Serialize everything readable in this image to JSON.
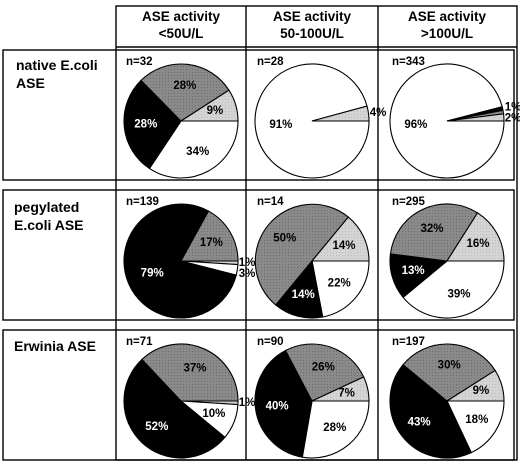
{
  "chart_data": {
    "type": "pie",
    "columns": [
      "ASE activity\n<50U/L",
      "ASE activity\n50-100U/L",
      "ASE activity\n>100U/L"
    ],
    "rows": [
      "native E.coli\nASE",
      "pegylated\nE.coli ASE",
      "Erwinia ASE"
    ],
    "colors": {
      "white": "#ffffff",
      "lightgray": "#d4d4d4",
      "darkgray": "#8a8a8a",
      "black": "#000000"
    },
    "pies": [
      {
        "row": 0,
        "col": 0,
        "n": "n=32",
        "slices": [
          {
            "value": 34,
            "label": "34%",
            "color": "white"
          },
          {
            "value": 28,
            "label": "28%",
            "color": "black"
          },
          {
            "value": 28,
            "label": "28%",
            "color": "darkgray"
          },
          {
            "value": 9,
            "label": "9%",
            "color": "lightgray"
          }
        ]
      },
      {
        "row": 0,
        "col": 1,
        "n": "n=28",
        "slices": [
          {
            "value": 91,
            "label": "91%",
            "color": "white"
          },
          {
            "value": 4,
            "label": "4%",
            "color": "lightgray"
          }
        ]
      },
      {
        "row": 0,
        "col": 2,
        "n": "n=343",
        "slices": [
          {
            "value": 96,
            "label": "96%",
            "color": "white"
          },
          {
            "value": 1,
            "label": "1%",
            "color": "black"
          },
          {
            "value": 1,
            "label": "",
            "color": "darkgray"
          },
          {
            "value": 2,
            "label": "2%",
            "color": "lightgray"
          }
        ]
      },
      {
        "row": 1,
        "col": 0,
        "n": "n=139",
        "slices": [
          {
            "value": 1,
            "label": "1%",
            "color": "lightgray"
          },
          {
            "value": 3,
            "label": "3%",
            "color": "white"
          },
          {
            "value": 79,
            "label": "79%",
            "color": "black"
          },
          {
            "value": 17,
            "label": "17%",
            "color": "darkgray"
          }
        ]
      },
      {
        "row": 1,
        "col": 1,
        "n": "n=14",
        "slices": [
          {
            "value": 22,
            "label": "22%",
            "color": "white"
          },
          {
            "value": 14,
            "label": "14%",
            "color": "black"
          },
          {
            "value": 50,
            "label": "50%",
            "color": "darkgray"
          },
          {
            "value": 14,
            "label": "14%",
            "color": "lightgray"
          }
        ]
      },
      {
        "row": 1,
        "col": 2,
        "n": "n=295",
        "slices": [
          {
            "value": 39,
            "label": "39%",
            "color": "white"
          },
          {
            "value": 13,
            "label": "13%",
            "color": "black"
          },
          {
            "value": 32,
            "label": "32%",
            "color": "darkgray"
          },
          {
            "value": 16,
            "label": "16%",
            "color": "lightgray"
          }
        ]
      },
      {
        "row": 2,
        "col": 0,
        "n": "n=71",
        "slices": [
          {
            "value": 1,
            "label": "1%",
            "color": "lightgray"
          },
          {
            "value": 10,
            "label": "10%",
            "color": "white"
          },
          {
            "value": 52,
            "label": "52%",
            "color": "black"
          },
          {
            "value": 37,
            "label": "37%",
            "color": "darkgray"
          }
        ]
      },
      {
        "row": 2,
        "col": 1,
        "n": "n=90",
        "slices": [
          {
            "value": 28,
            "label": "28%",
            "color": "white"
          },
          {
            "value": 40,
            "label": "40%",
            "color": "black"
          },
          {
            "value": 26,
            "label": "26%",
            "color": "darkgray"
          },
          {
            "value": 7,
            "label": "7%",
            "color": "lightgray"
          }
        ]
      },
      {
        "row": 2,
        "col": 2,
        "n": "n=197",
        "slices": [
          {
            "value": 18,
            "label": "18%",
            "color": "white"
          },
          {
            "value": 43,
            "label": "43%",
            "color": "black"
          },
          {
            "value": 30,
            "label": "30%",
            "color": "darkgray"
          },
          {
            "value": 9,
            "label": "9%",
            "color": "lightgray"
          }
        ]
      }
    ]
  }
}
